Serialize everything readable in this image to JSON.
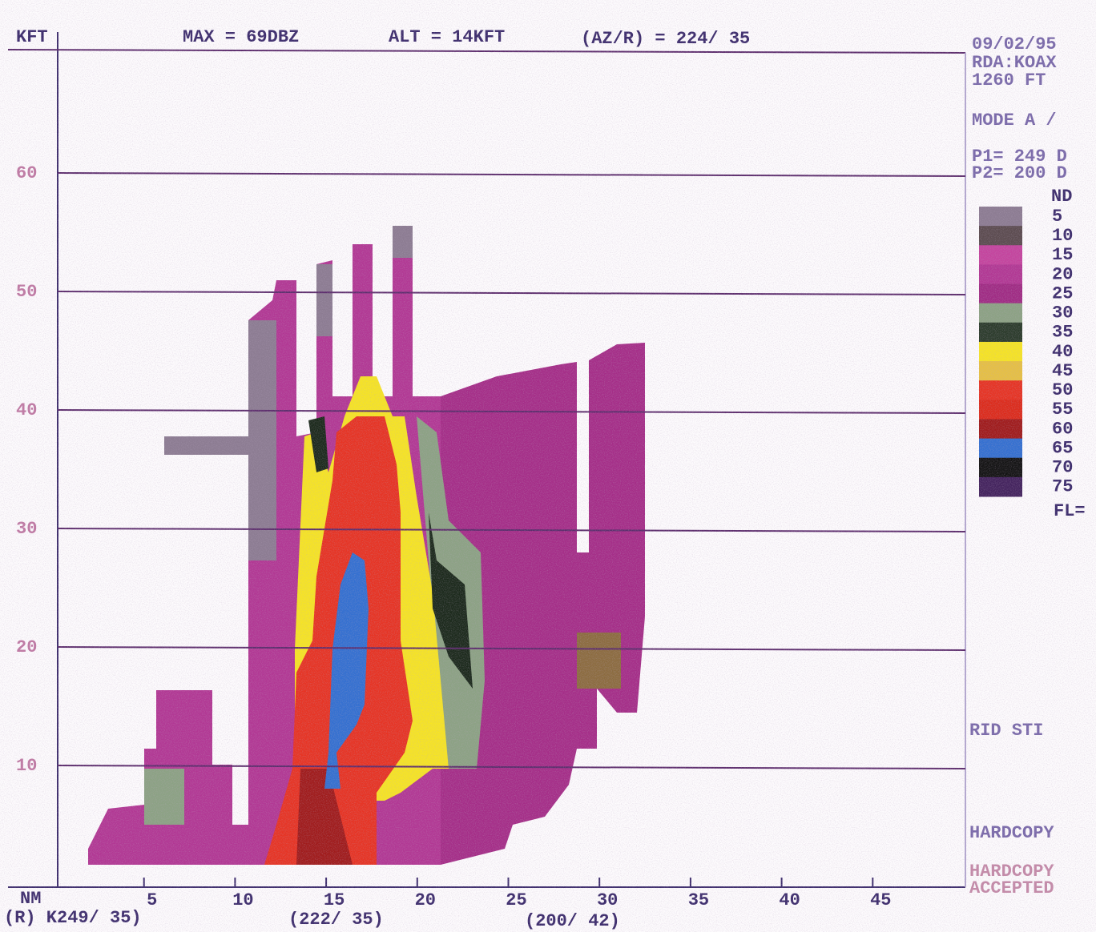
{
  "header": {
    "unit": "KFT",
    "max": "MAX =  69DBZ",
    "alt": "ALT = 14KFT",
    "azr": "(AZ/R) = 224/ 35"
  },
  "axes": {
    "ylim": [
      0,
      70
    ],
    "yticks": [
      10,
      20,
      30,
      40,
      50,
      60
    ],
    "xlim": [
      0,
      50
    ],
    "xticks": [
      5,
      10,
      15,
      20,
      25,
      30,
      35,
      40,
      45
    ],
    "x_unit": "NM"
  },
  "footer": {
    "left": "(R) K249/ 35)",
    "mid": "(222/ 35)",
    "right": "(200/ 42)"
  },
  "side_panel": {
    "date": "09/02/95",
    "rda": "RDA:KOAX",
    "elev": "1260 FT",
    "mode": "MODE A /",
    "p1": "P1= 249 D",
    "p2": "P2= 200 D",
    "fl": "FL=",
    "rid": "RID STI",
    "hardcopy": "HARDCOPY",
    "hardcopy_accepted_1": "HARDCOPY",
    "hardcopy_accepted_2": "ACCEPTED"
  },
  "legend": {
    "nd": "ND",
    "levels": [
      {
        "label": "5",
        "color": "#8c7c92"
      },
      {
        "label": "10",
        "color": "#5c4c50"
      },
      {
        "label": "15",
        "color": "#c4449e"
      },
      {
        "label": "20",
        "color": "#b23894"
      },
      {
        "label": "25",
        "color": "#a02c84"
      },
      {
        "label": "30",
        "color": "#8ca284"
      },
      {
        "label": "35",
        "color": "#2c3c2c"
      },
      {
        "label": "40",
        "color": "#f6e424"
      },
      {
        "label": "45",
        "color": "#e6c044"
      },
      {
        "label": "50",
        "color": "#e63424"
      },
      {
        "label": "55",
        "color": "#dc2c1c"
      },
      {
        "label": "60",
        "color": "#a01c1c"
      },
      {
        "label": "65",
        "color": "#3470d0"
      },
      {
        "label": "70",
        "color": "#141414"
      },
      {
        "label": "75",
        "color": "#44245e"
      }
    ]
  }
}
